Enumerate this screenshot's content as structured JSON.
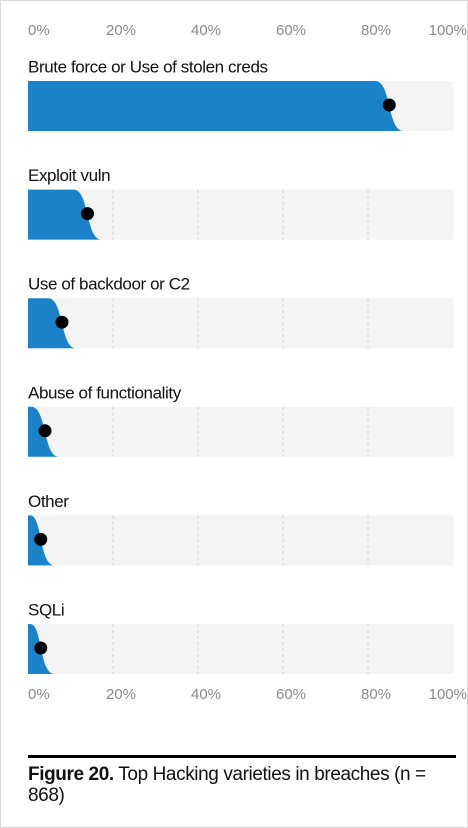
{
  "chart_data": {
    "type": "bar",
    "categories": [
      "Brute force or Use of stolen creds",
      "Exploit vuln",
      "Use of backdoor or C2",
      "Abuse of functionality",
      "Other",
      "SQLi"
    ],
    "values": [
      85,
      14,
      8,
      4,
      3,
      3
    ],
    "color": "#1a82c8",
    "xlim": [
      0,
      100
    ],
    "xticks": [
      {
        "value": 0,
        "label": "0%"
      },
      {
        "value": 20,
        "label": "20%"
      },
      {
        "value": 40,
        "label": "40%"
      },
      {
        "value": 60,
        "label": "60%"
      },
      {
        "value": 80,
        "label": "80%"
      },
      {
        "value": 100,
        "label": "100%"
      }
    ],
    "grid": true,
    "caption": {
      "label": "Figure 20.",
      "text": "Top Hacking varieties in breaches (n = 868)"
    }
  }
}
